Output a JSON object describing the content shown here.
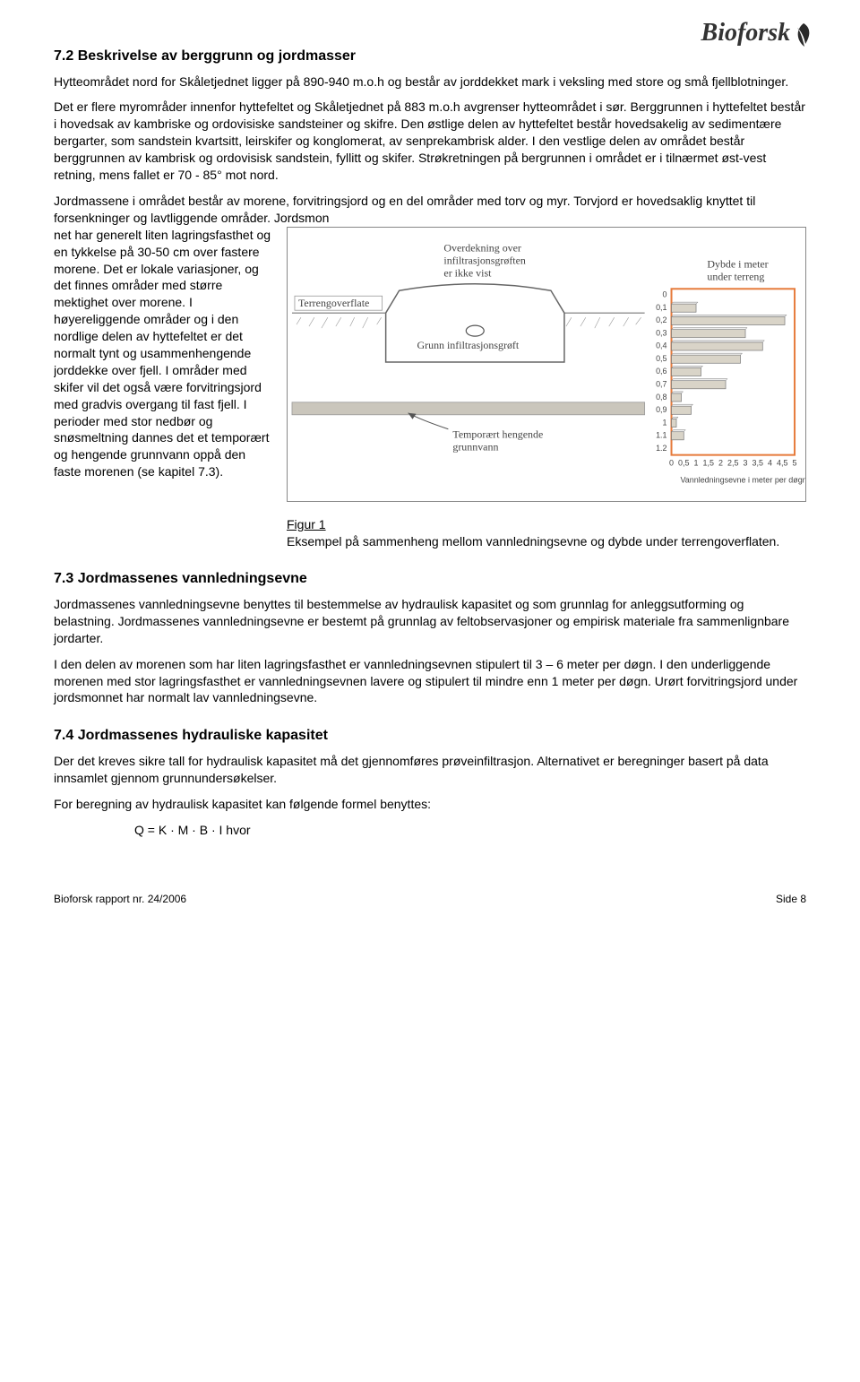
{
  "logo": {
    "text": "Bioforsk"
  },
  "section72": {
    "heading": "7.2  Beskrivelse av berggrunn og jordmasser",
    "p1": "Hytteområdet nord for Skåletjednet ligger på 890-940 m.o.h og består av jorddekket mark i veksling med store og små fjellblotninger.",
    "p2": "Det er flere myrområder innenfor hyttefeltet og Skåletjednet på 883 m.o.h avgrenser hytteområdet i sør. Berggrunnen i hyttefeltet består i hovedsak av kambriske og ordovisiske sandsteiner og skifre. Den østlige delen av hyttefeltet består hovedsakelig av sedimentære bergarter, som sandstein kvartsitt, leirskifer og konglomerat, av senprekambrisk alder. I den vestlige delen av området består berggrunnen av kambrisk og ordovisisk sandstein, fyllitt og skifer. Strøkretningen på bergrunnen i området er i tilnærmet øst-vest retning, mens fallet er 70 - 85° mot nord.",
    "p3a": "Jordmassene i området består av morene, forvitringsjord og en del områder med torv og myr. Torvjord er hovedsaklig knyttet til forsenkninger og lavtliggende områder. Jordsmon",
    "p3b": "net har generelt liten lagringsfasthet og en tykkelse på 30-50 cm over fastere morene. Det er lokale variasjoner, og det finnes områder med større mektighet over morene. I høyereliggende områder og i den nordlige delen av hyttefeltet er det normalt tynt og usammenhengende jorddekke over fjell. I områder med skifer vil det også være forvitringsjord med gradvis overgang til fast fjell. I perioder med stor nedbør og snøsmeltning dannes det et temporært og hengende grunnvann oppå den faste morenen (se kapitel 7.3)."
  },
  "figure1": {
    "caption_title": "Figur 1",
    "caption_text": "Eksempel på sammenheng mellom vannledningsevne og dybde under terrengoverflaten.",
    "labels": {
      "overdekning": "Overdekning over\ninfiltrasjonsgrøften\ner ikke vist",
      "dybde": "Dybde i meter\nunder terreng",
      "terreng": "Terrengoverflate",
      "groft": "Grunn infiltrasjonsgrøft",
      "temp": "Temporært hengende\ngrunnvann",
      "xaxis": "Vannledningsevne i meter per døgn"
    },
    "chart": {
      "type": "horizontal-bar",
      "depths": [
        0,
        0.1,
        0.2,
        0.3,
        0.4,
        0.5,
        0.6,
        0.7,
        0.8,
        0.9,
        1,
        1.1,
        1.2
      ],
      "values": [
        0,
        1.0,
        4.6,
        3.0,
        3.7,
        2.8,
        1.2,
        2.2,
        0.4,
        0.8,
        0.2,
        0.5,
        0.0
      ],
      "xmax": 5,
      "xticks": [
        0,
        0.5,
        1,
        1.5,
        2,
        2.5,
        3,
        3.5,
        4,
        4.5,
        5
      ],
      "bar_color": "#d9d4c8",
      "bar_border": "#777",
      "axis_color": "#555",
      "background": "#ffffff",
      "sketch_line_color": "#888",
      "figure_border": "#888"
    }
  },
  "section73": {
    "heading": "7.3  Jordmassenes vannledningsevne",
    "p1": "Jordmassenes vannledningsevne benyttes til bestemmelse av hydraulisk kapasitet og som grunnlag for anleggsutforming og belastning. Jordmassenes vannledningsevne er bestemt på grunnlag av feltobservasjoner og empirisk materiale fra sammenlignbare jordarter.",
    "p2": "I den delen av morenen som har liten lagringsfasthet er vannledningsevnen stipulert til 3 – 6 meter per døgn. I den underliggende morenen med stor lagringsfasthet er vannledningsevnen lavere og stipulert til mindre enn 1 meter per døgn. Urørt forvitringsjord under jordsmonnet har normalt lav vannledningsevne."
  },
  "section74": {
    "heading": "7.4  Jordmassenes hydrauliske kapasitet",
    "p1": "Der det kreves sikre tall for hydraulisk kapasitet må det gjennomføres prøveinfiltrasjon. Alternativet er beregninger basert på data innsamlet gjennom grunnundersøkelser.",
    "p2": "For beregning av hydraulisk kapasitet kan følgende formel benyttes:",
    "formula": "Q = K · M · B · I          hvor"
  },
  "footer": {
    "left": "Bioforsk rapport nr. 24/2006",
    "right": "Side  8"
  }
}
